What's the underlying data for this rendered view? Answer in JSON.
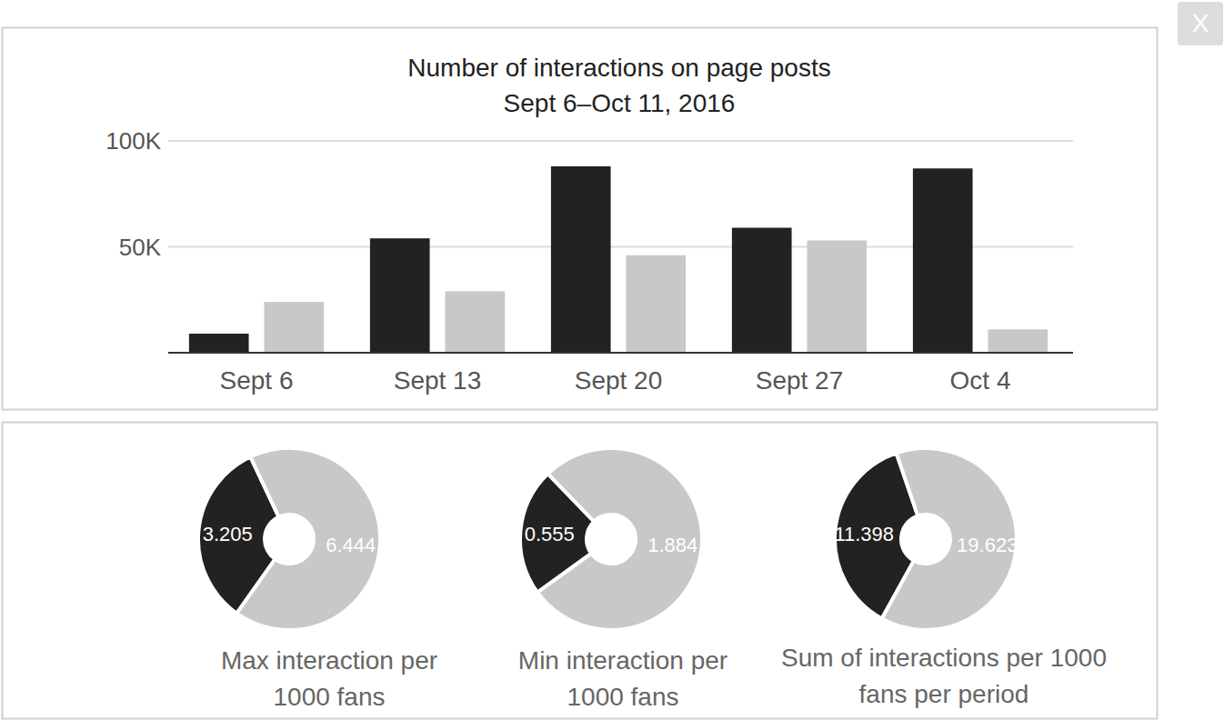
{
  "close_button": {
    "label": "X"
  },
  "chart_data": [
    {
      "type": "bar",
      "title": "Number of interactions on page posts",
      "subtitle": "Sept 6–Oct 11, 2016",
      "categories": [
        "Sept 6",
        "Sept 13",
        "Sept 20",
        "Sept 27",
        "Oct 4"
      ],
      "series": [
        {
          "color": "#222222",
          "values": [
            9000,
            54000,
            88000,
            59000,
            87000
          ]
        },
        {
          "color": "#c8c8c8",
          "values": [
            24000,
            29000,
            46000,
            53000,
            11000
          ]
        }
      ],
      "ylim": [
        0,
        100000
      ],
      "yticks": [
        {
          "value": 50000,
          "label": "50K"
        },
        {
          "value": 100000,
          "label": "100K"
        }
      ],
      "grid": true
    },
    {
      "type": "donut",
      "title": "Max interaction per 1000 fans",
      "values": [
        3.205,
        6.444
      ],
      "colors": [
        "#222222",
        "#c8c8c8"
      ],
      "data_labels": true
    },
    {
      "type": "donut",
      "title": "Min interaction per 1000 fans",
      "values": [
        0.555,
        1.884
      ],
      "colors": [
        "#222222",
        "#c8c8c8"
      ],
      "data_labels": true
    },
    {
      "type": "donut",
      "title": "Sum of interactions per 1000 fans per period",
      "values": [
        11.398,
        19.623
      ],
      "colors": [
        "#222222",
        "#c8c8c8"
      ],
      "data_labels": true
    }
  ]
}
